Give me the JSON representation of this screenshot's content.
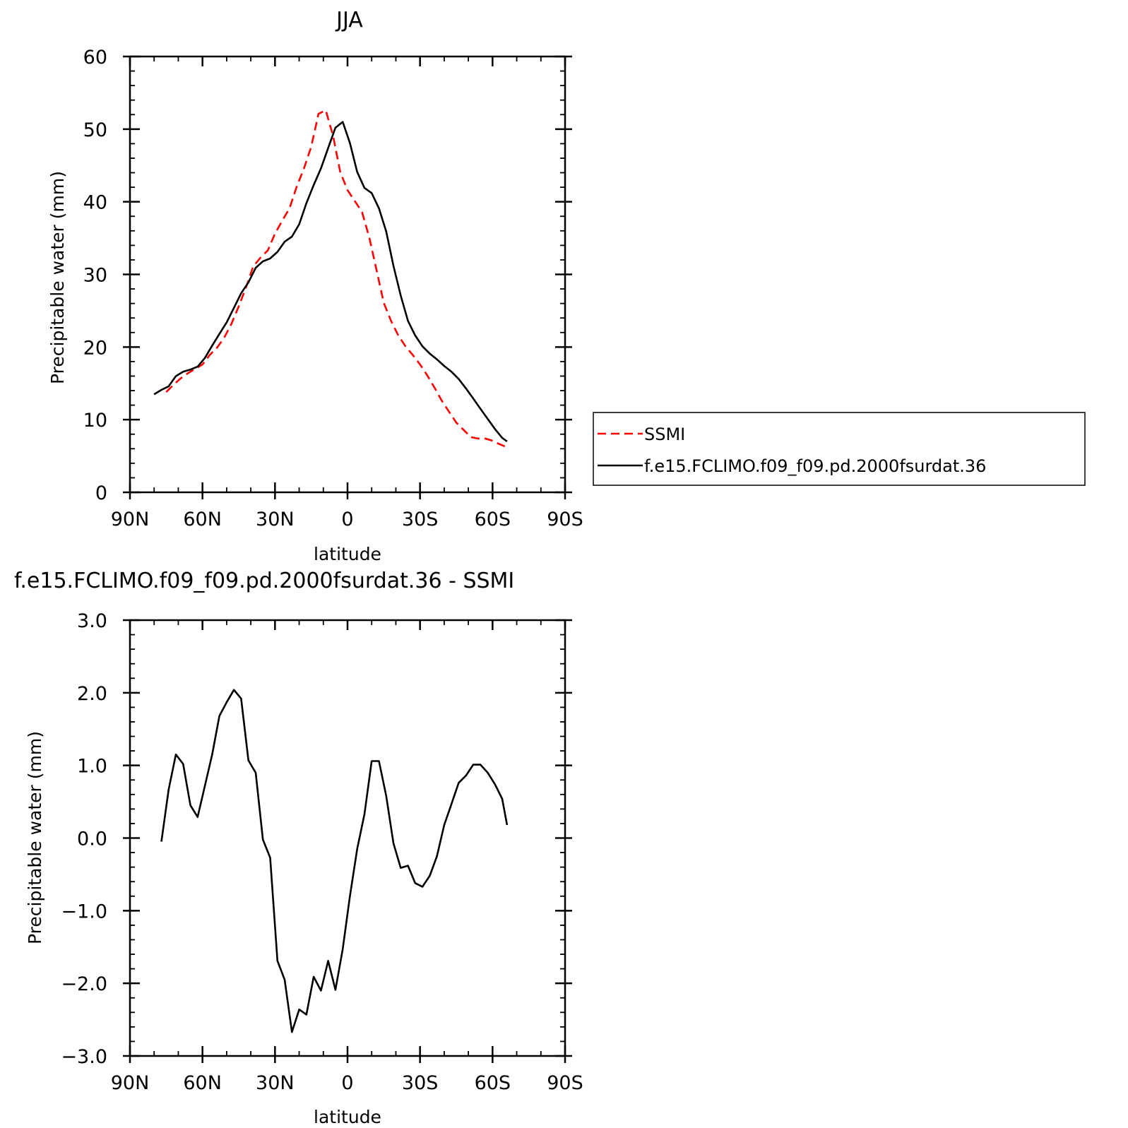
{
  "colors": {
    "ssmi": "#ff0000",
    "model": "#000000",
    "axis": "#000000"
  },
  "chart_data": [
    {
      "type": "line",
      "title": "JJA",
      "xlabel": "latitude",
      "ylabel": "Precipitable water (mm)",
      "xlim": [
        90,
        -90
      ],
      "ylim": [
        0,
        60
      ],
      "x_ticks": [
        90,
        60,
        30,
        0,
        -30,
        -60,
        -90
      ],
      "x_tick_labels": [
        "90N",
        "60N",
        "30N",
        "0",
        "30S",
        "60S",
        "90S"
      ],
      "y_ticks": [
        0,
        10,
        20,
        30,
        40,
        50,
        60
      ],
      "y_tick_labels": [
        "0",
        "10",
        "20",
        "30",
        "40",
        "50",
        "60"
      ],
      "legend": {
        "position": "right-bottom",
        "entries": [
          "SSMI",
          "f.e15.FCLIMO.f09_f09.pd.2000fsurdat.36"
        ]
      },
      "series": [
        {
          "name": "SSMI",
          "style": "dashed",
          "color": "#ff0000",
          "x": [
            75,
            72,
            69,
            66,
            63,
            60,
            57,
            54,
            51,
            48,
            45,
            42,
            39,
            36,
            33,
            30,
            27,
            24,
            21,
            18,
            15,
            12,
            9,
            6,
            3,
            0,
            -3,
            -6,
            -9,
            -12,
            -15,
            -18,
            -21,
            -24,
            -27,
            -30,
            -33,
            -36,
            -39,
            -42,
            -45,
            -48,
            -51,
            -54,
            -57,
            -60,
            -63,
            -66
          ],
          "y": [
            13.8,
            14.8,
            15.7,
            16.4,
            17.0,
            17.6,
            18.9,
            19.9,
            21.3,
            23.2,
            25.6,
            28.2,
            31.1,
            32.3,
            33.3,
            35.6,
            37.4,
            39.1,
            42.1,
            44.6,
            47.6,
            52.1,
            52.6,
            49.1,
            44.1,
            41.6,
            40.1,
            38.6,
            35.1,
            30.6,
            26.1,
            23.6,
            21.6,
            20.1,
            18.9,
            17.6,
            16.1,
            14.4,
            12.6,
            11.1,
            9.6,
            8.6,
            7.6,
            7.4,
            7.4,
            7.1,
            6.6,
            6.2
          ]
        },
        {
          "name": "f.e15.FCLIMO.f09_f09.pd.2000fsurdat.36",
          "style": "solid",
          "color": "#000000",
          "x": [
            80,
            77,
            74,
            71,
            68,
            65,
            62,
            59,
            56,
            53,
            50,
            47,
            44,
            41,
            38,
            35,
            32,
            29,
            26,
            23,
            20,
            17,
            14,
            11,
            8,
            5,
            2,
            -1,
            -4,
            -7,
            -10,
            -13,
            -16,
            -19,
            -22,
            -25,
            -28,
            -31,
            -34,
            -37,
            -40,
            -43,
            -46,
            -49,
            -52,
            -55,
            -58,
            -61,
            -64,
            -66
          ],
          "y": [
            13.5,
            14.1,
            14.6,
            16.0,
            16.6,
            16.9,
            17.3,
            18.5,
            20.2,
            21.8,
            23.4,
            25.4,
            27.4,
            28.9,
            30.9,
            31.8,
            32.2,
            33.1,
            34.5,
            35.2,
            36.9,
            39.8,
            42.3,
            44.6,
            47.4,
            50.2,
            51.0,
            48.1,
            44.1,
            41.9,
            41.2,
            39.1,
            35.9,
            31.2,
            27.1,
            23.6,
            21.6,
            20.1,
            19.1,
            18.3,
            17.4,
            16.6,
            15.6,
            14.3,
            12.9,
            11.5,
            10.1,
            8.7,
            7.5,
            7.0
          ]
        }
      ]
    },
    {
      "type": "line",
      "title": "f.e15.FCLIMO.f09_f09.pd.2000fsurdat.36 - SSMI",
      "xlabel": "latitude",
      "ylabel": "Precipitable water (mm)",
      "xlim": [
        90,
        -90
      ],
      "ylim": [
        -3,
        3
      ],
      "x_ticks": [
        90,
        60,
        30,
        0,
        -30,
        -60,
        -90
      ],
      "x_tick_labels": [
        "90N",
        "60N",
        "30N",
        "0",
        "30S",
        "60S",
        "90S"
      ],
      "y_ticks": [
        3,
        2,
        1,
        0,
        -1,
        -2,
        -3
      ],
      "y_tick_labels": [
        "3.0",
        "2.0",
        "1.0",
        "0.0",
        "−1.0",
        "−2.0",
        "−3.0"
      ],
      "series": [
        {
          "style": "solid",
          "color": "#000000",
          "x": [
            77,
            74,
            71,
            68,
            65,
            62,
            59,
            56,
            53,
            50,
            47,
            44,
            41,
            38,
            35,
            32,
            29,
            26,
            23,
            20,
            17,
            14,
            11,
            8,
            5,
            2,
            -1,
            -4,
            -7,
            -10,
            -13,
            -16,
            -19,
            -22,
            -25,
            -28,
            -31,
            -34,
            -37,
            -40,
            -43,
            -46,
            -49,
            -52,
            -55,
            -58,
            -61,
            -64,
            -66
          ],
          "y": [
            -0.05,
            0.67,
            1.15,
            1.02,
            0.45,
            0.29,
            0.72,
            1.15,
            1.68,
            1.87,
            2.04,
            1.92,
            1.07,
            0.9,
            -0.02,
            -0.27,
            -1.69,
            -1.95,
            -2.67,
            -2.36,
            -2.43,
            -1.91,
            -2.1,
            -1.69,
            -2.09,
            -1.53,
            -0.8,
            -0.15,
            0.33,
            1.06,
            1.06,
            0.58,
            -0.07,
            -0.41,
            -0.38,
            -0.62,
            -0.67,
            -0.52,
            -0.25,
            0.18,
            0.47,
            0.76,
            0.86,
            1.01,
            1.01,
            0.9,
            0.74,
            0.54,
            0.18
          ]
        }
      ]
    }
  ]
}
